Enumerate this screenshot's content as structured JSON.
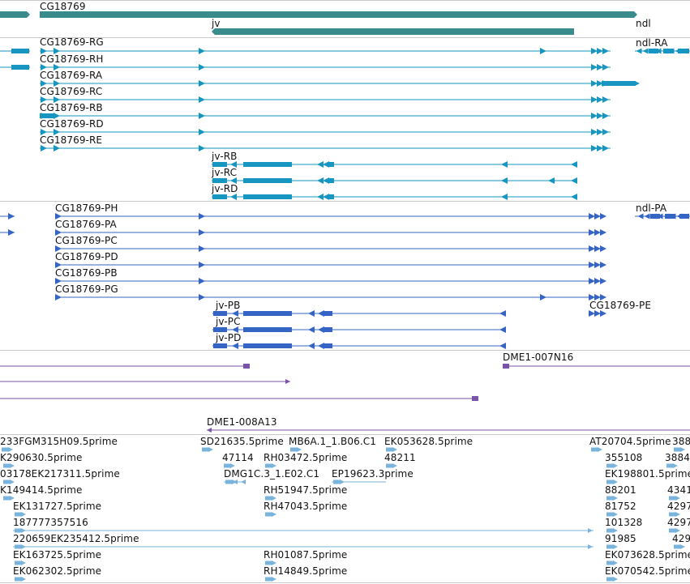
{
  "colors": {
    "gene": "#3a8c8c",
    "teal": "#1696c0",
    "blue": "#3565c4",
    "purple": "#7a54a8",
    "est": "#7ab3dc",
    "separator": "#c9c9c9"
  },
  "gene_track": {
    "genes": [
      "CG18769",
      "jv",
      "ndl"
    ]
  },
  "flybase_track": {
    "transcripts": [
      "CG18769-RG",
      "CG18769-RH",
      "CG18769-RA",
      "CG18769-RC",
      "CG18769-RB",
      "CG18769-RD",
      "CG18769-RE",
      "ndl-RA",
      "jv-RB",
      "jv-RC",
      "jv-RD"
    ]
  },
  "protein_track": {
    "proteins": [
      "CG18769-PH",
      "CG18769-PA",
      "CG18769-PC",
      "CG18769-PD",
      "CG18769-PB",
      "CG18769-PG",
      "ndl-PA",
      "CG18769-PE",
      "jv-PB",
      "jv-PC",
      "jv-PD"
    ]
  },
  "clone_track": {
    "clones": [
      "DME1-007N16",
      "DME1-008A13"
    ]
  },
  "est_track": {
    "labels": [
      "233FGM315H09.5prime",
      "SD21635.5prime",
      "MB6A.1_1.B06.C1",
      "EK053628.5prime",
      "AT20704.5prime",
      "388",
      "K290630.5prime",
      "47114",
      "RH03472.5prime",
      "48211",
      "355108",
      "3884",
      "03178EK217311.5prime",
      "DMG1C.3_1.E02.C1",
      "EP19623.3prime",
      "EK198801.5prime",
      "K149414.5prime",
      "RH51947.5prime",
      "88201",
      "4341",
      "EK131727.5prime",
      "RH47043.5prime",
      "81752",
      "4297",
      "187777357516",
      "101328",
      "4297",
      "220659EK235412.5prime",
      "91985",
      "429",
      "EK163725.5prime",
      "RH01087.5prime",
      "EK073628.5prime",
      "EK062302.5prime",
      "RH14849.5prime",
      "EK070542.5prime"
    ]
  }
}
